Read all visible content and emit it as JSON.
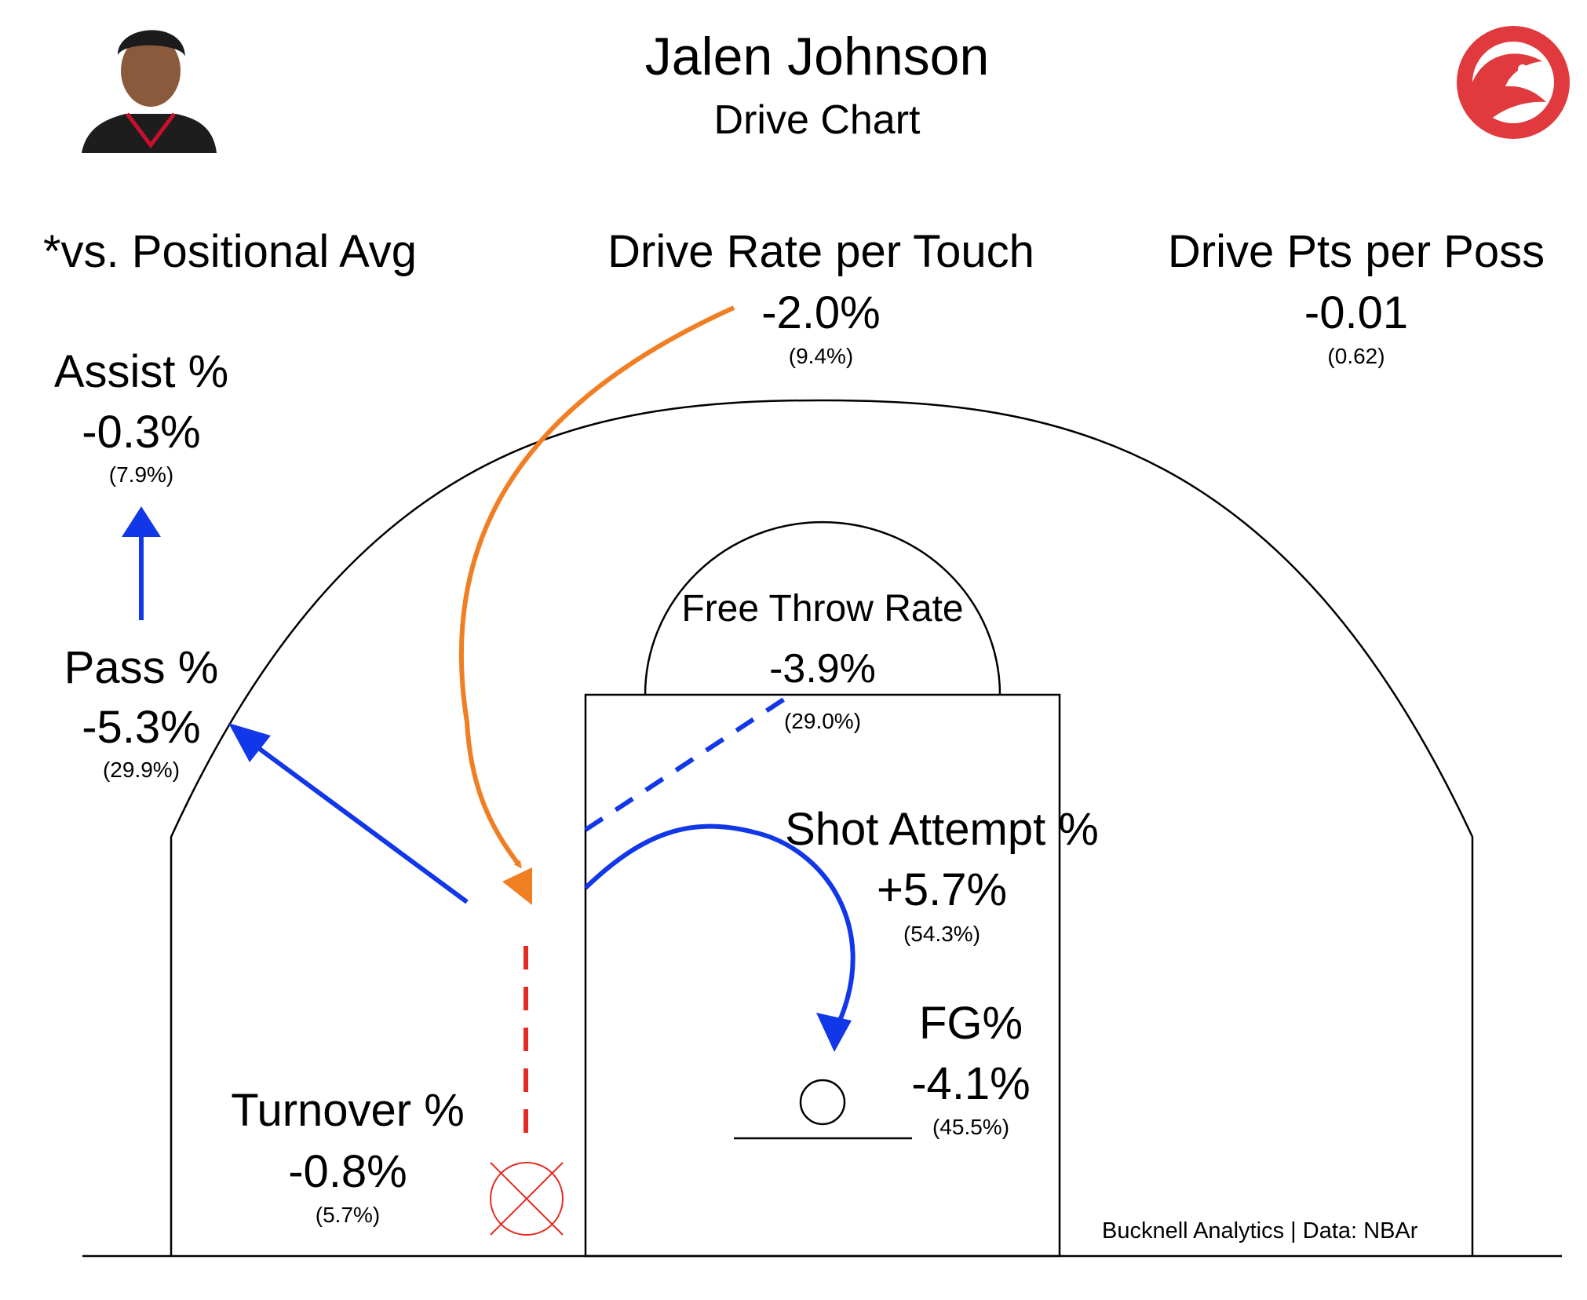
{
  "header": {
    "player_name": "Jalen Johnson",
    "subtitle": "Drive Chart",
    "team_logo_icon": "hawks-logo-icon",
    "photo_icon": "player-headshot-icon"
  },
  "chart_data": {
    "type": "table",
    "note": "*vs. Positional Avg",
    "metrics": [
      {
        "key": "drive_rate",
        "label": "Drive Rate per Touch",
        "diff": "-2.0%",
        "value": "(9.4%)"
      },
      {
        "key": "drive_pts",
        "label": "Drive Pts per Poss",
        "diff": "-0.01",
        "value": "(0.62)"
      },
      {
        "key": "assist",
        "label": "Assist %",
        "diff": "-0.3%",
        "value": "(7.9%)"
      },
      {
        "key": "pass",
        "label": "Pass %",
        "diff": "-5.3%",
        "value": "(29.9%)"
      },
      {
        "key": "free_throw",
        "label": "Free Throw Rate",
        "diff": "-3.9%",
        "value": "(29.0%)"
      },
      {
        "key": "shot_attempt",
        "label": "Shot Attempt %",
        "diff": "+5.7%",
        "value": "(54.3%)"
      },
      {
        "key": "fg",
        "label": "FG%",
        "diff": "-4.1%",
        "value": "(45.5%)"
      },
      {
        "key": "turnover",
        "label": "Turnover %",
        "diff": "-0.8%",
        "value": "(5.7%)"
      }
    ]
  },
  "colors": {
    "drive": "#f07f24",
    "pass_shot": "#1237e8",
    "turnover": "#e52b21",
    "court": "#000000"
  },
  "credit": "Bucknell Analytics | Data: NBAr"
}
